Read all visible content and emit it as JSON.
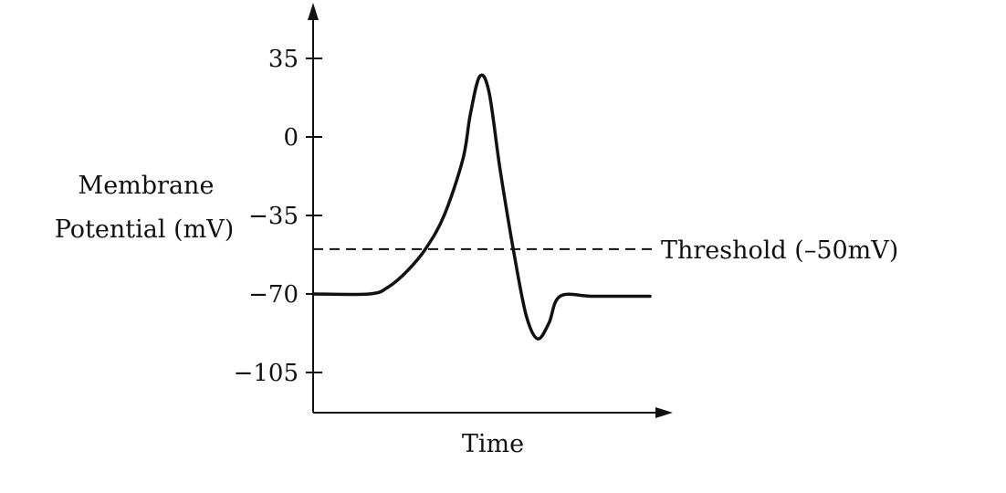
{
  "chart_data": {
    "type": "line",
    "xlabel": "Time",
    "ylabel_lines": [
      "Membrane",
      "Potential (mV)"
    ],
    "yticks": [
      {
        "value": 35,
        "label": "35"
      },
      {
        "value": 0,
        "label": "0"
      },
      {
        "value": -35,
        "label": "−35"
      },
      {
        "value": -70,
        "label": "−70"
      },
      {
        "value": -105,
        "label": "−105"
      }
    ],
    "threshold": {
      "value": -50,
      "label": "Threshold (–50mV)"
    },
    "series": [
      {
        "values": [
          {
            "t": 0,
            "v": -70
          },
          {
            "t": 1.5,
            "v": -70
          },
          {
            "t": 2.0,
            "v": -67
          },
          {
            "t": 2.5,
            "v": -60
          },
          {
            "t": 3.0,
            "v": -50
          },
          {
            "t": 3.5,
            "v": -35
          },
          {
            "t": 4.0,
            "v": -10
          },
          {
            "t": 4.2,
            "v": 10
          },
          {
            "t": 4.45,
            "v": 27
          },
          {
            "t": 4.7,
            "v": 20
          },
          {
            "t": 5.0,
            "v": -15
          },
          {
            "t": 5.4,
            "v": -55
          },
          {
            "t": 5.7,
            "v": -80
          },
          {
            "t": 6.0,
            "v": -90
          },
          {
            "t": 6.3,
            "v": -83
          },
          {
            "t": 6.6,
            "v": -71
          },
          {
            "t": 7.5,
            "v": -71
          },
          {
            "t": 9.0,
            "v": -71
          }
        ]
      }
    ],
    "grid": false
  }
}
